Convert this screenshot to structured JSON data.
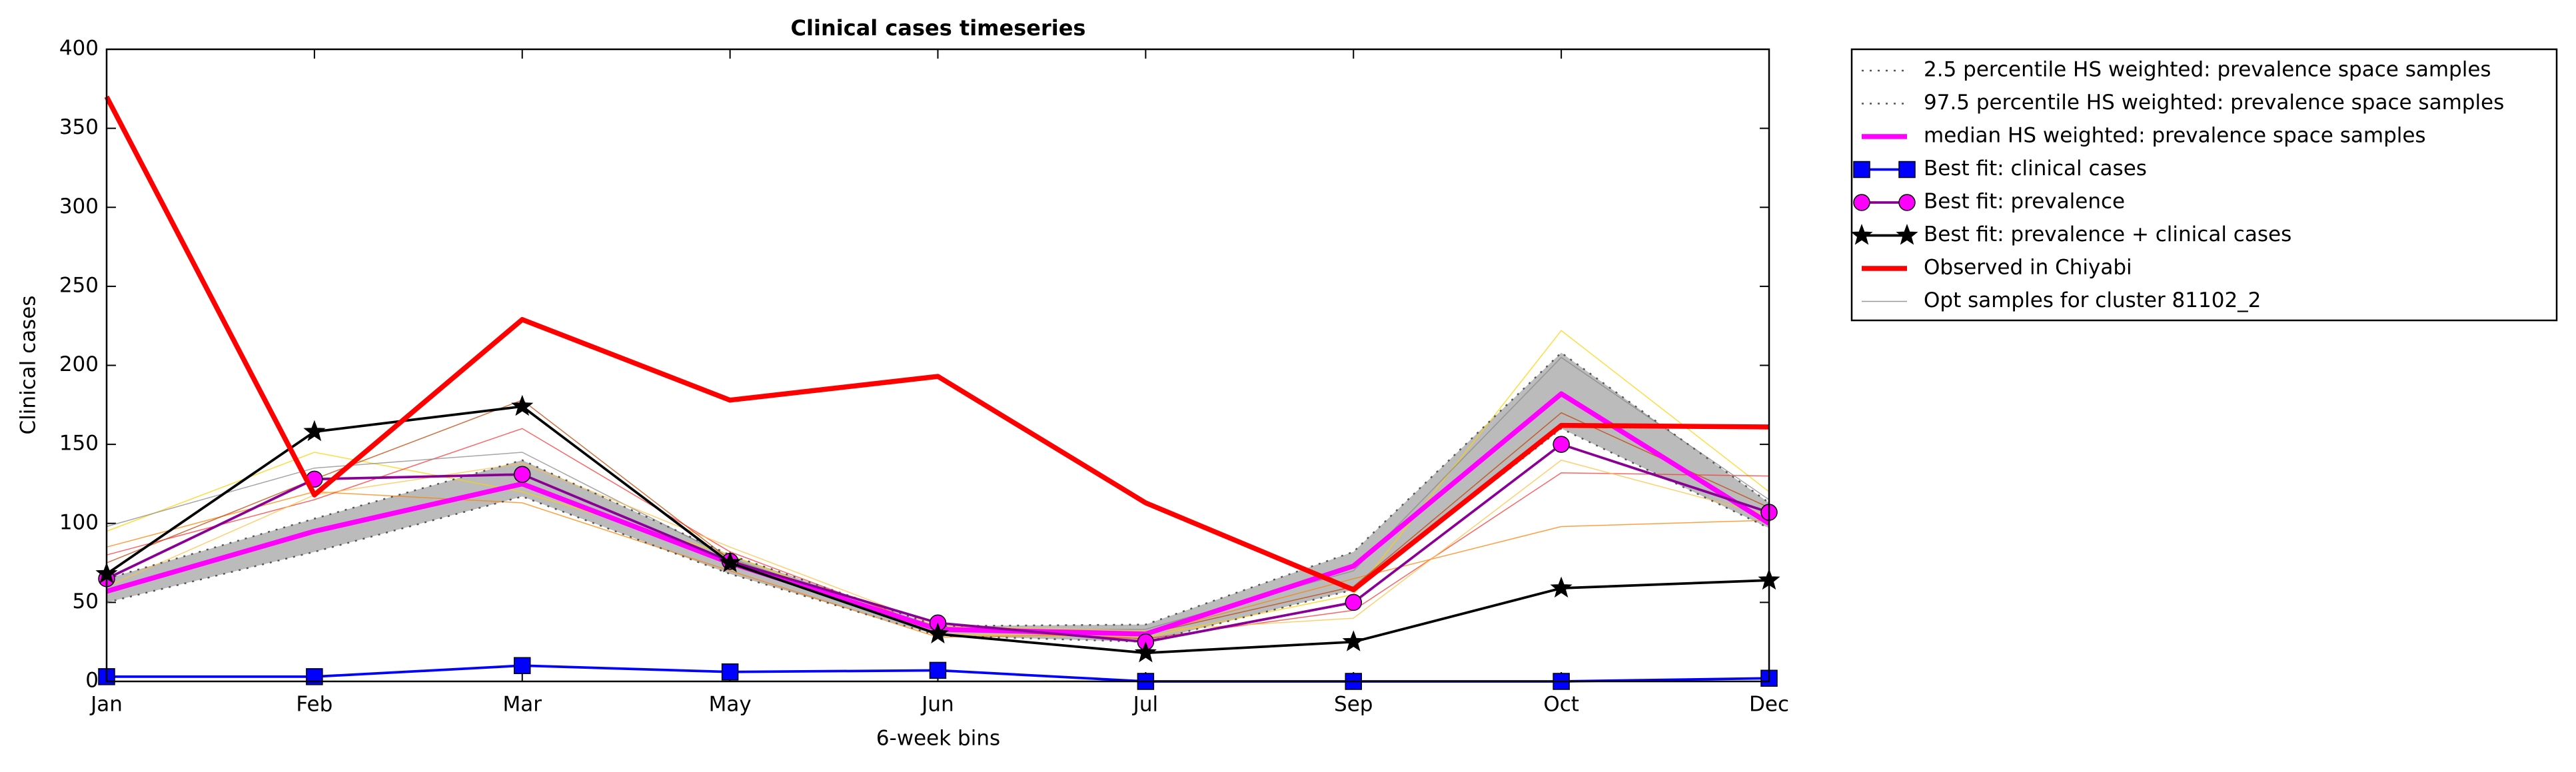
{
  "chart_data": {
    "type": "line",
    "title": "Clinical cases timeseries",
    "xlabel": "6-week bins",
    "ylabel": "Clinical cases",
    "categories": [
      "Jan",
      "Feb",
      "Mar",
      "May",
      "Jun",
      "Jul",
      "Sep",
      "Oct",
      "Dec"
    ],
    "ylim": [
      0,
      400
    ],
    "yticks": [
      0,
      50,
      100,
      150,
      200,
      250,
      300,
      350,
      400
    ],
    "band": {
      "lower": 0,
      "upper": 1,
      "color": "#bbbbbb"
    },
    "legend": "outside-upper-right",
    "series": [
      {
        "name": "2.5 percentile HS weighted: prevalence space samples",
        "color": "#555555",
        "linestyle": "dotted",
        "width": 1,
        "values": [
          50,
          82,
          117,
          68,
          29,
          25,
          58,
          160,
          97
        ]
      },
      {
        "name": "97.5 percentile HS weighted: prevalence space samples",
        "color": "#555555",
        "linestyle": "dotted",
        "width": 1,
        "values": [
          65,
          103,
          140,
          80,
          35,
          36,
          82,
          208,
          113
        ]
      },
      {
        "name": "median HS weighted: prevalence space samples",
        "color": "#ff00ff",
        "linestyle": "solid",
        "width": 3,
        "values": [
          57,
          95,
          125,
          75,
          33,
          30,
          73,
          182,
          100
        ]
      },
      {
        "name": "Best fit: clinical cases",
        "color": "#0000ff",
        "linestyle": "solid",
        "width": 1.5,
        "marker": "square",
        "markercolor": "#0000ff",
        "values": [
          3,
          3,
          10,
          6,
          7,
          0,
          0,
          0,
          2
        ]
      },
      {
        "name": "Best fit: prevalence",
        "color": "#8a0096",
        "linestyle": "solid",
        "width": 1.5,
        "marker": "circle",
        "markercolor": "#ff00ff",
        "values": [
          65,
          128,
          131,
          76,
          37,
          25,
          50,
          150,
          107
        ]
      },
      {
        "name": "Best fit: prevalence + clinical cases",
        "color": "#000000",
        "linestyle": "solid",
        "width": 1.5,
        "marker": "star",
        "markercolor": "#000000",
        "values": [
          68,
          158,
          174,
          75,
          30,
          18,
          25,
          59,
          64
        ]
      },
      {
        "name": "Observed in Chiyabi",
        "color": "#ff0000",
        "linestyle": "solid",
        "width": 3,
        "values": [
          370,
          118,
          229,
          178,
          193,
          113,
          58,
          162,
          161
        ]
      },
      {
        "name": "Opt samples for cluster 81102_2",
        "color": "#999999",
        "linestyle": "solid",
        "width": 0.6,
        "lines": [
          {
            "color": "#ffd000",
            "values": [
              95,
              145,
              120,
              80,
              30,
              28,
              55,
              222,
              120
            ]
          },
          {
            "color": "#ff8000",
            "values": [
              85,
              120,
              113,
              70,
              28,
              30,
              65,
              98,
              102
            ]
          },
          {
            "color": "#ff3030",
            "values": [
              80,
              115,
              160,
              82,
              33,
              27,
              45,
              132,
              130
            ]
          },
          {
            "color": "#888888",
            "values": [
              98,
              135,
              145,
              78,
              32,
              33,
              70,
              205,
              115
            ]
          },
          {
            "color": "#ffc040",
            "values": [
              60,
              118,
              138,
              85,
              35,
              32,
              40,
              140,
              105
            ]
          },
          {
            "color": "#c04000",
            "values": [
              75,
              128,
              178,
              77,
              34,
              30,
              60,
              170,
              110
            ]
          }
        ]
      }
    ]
  }
}
